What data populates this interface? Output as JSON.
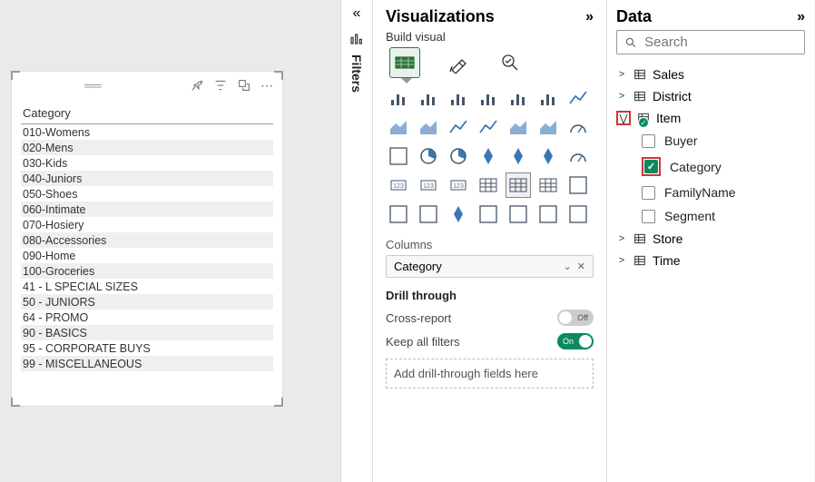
{
  "canvas": {
    "table": {
      "header": "Category",
      "rows": [
        "010-Womens",
        "020-Mens",
        "030-Kids",
        "040-Juniors",
        "050-Shoes",
        "060-Intimate",
        "070-Hosiery",
        "080-Accessories",
        "090-Home",
        "100-Groceries",
        "41 - L SPECIAL SIZES",
        "50 - JUNIORS",
        "64 - PROMO",
        "90 - BASICS",
        "95 - CORPORATE BUYS",
        "99 - MISCELLANEOUS"
      ]
    }
  },
  "filters": {
    "label": "Filters"
  },
  "viz": {
    "title": "Visualizations",
    "subtitle": "Build visual",
    "columns_label": "Columns",
    "columns_field": "Category",
    "drill_label": "Drill through",
    "cross_report_label": "Cross-report",
    "cross_report_state": "Off",
    "keep_filters_label": "Keep all filters",
    "keep_filters_state": "On",
    "drill_drop_label": "Add drill-through fields here",
    "icons": [
      "stacked-bar",
      "stacked-column",
      "clustered-bar",
      "clustered-column",
      "hundred-bar",
      "hundred-column",
      "line",
      "area",
      "stacked-area",
      "line-stacked-col",
      "line-clustered-col",
      "ribbon",
      "waterfall",
      "funnel",
      "scatter",
      "pie",
      "donut",
      "treemap",
      "map",
      "filled-map",
      "gauge",
      "card",
      "multi-card",
      "kpi",
      "slicer",
      "table",
      "matrix",
      "r-visual",
      "py-visual",
      "key-influencers",
      "decomp-tree",
      "qa",
      "narrative",
      "paginated",
      "power-apps"
    ],
    "selected_icon": 25,
    "colors": {
      "accent_blue": "#3a77b7",
      "accent_green": "#2d7a3c"
    }
  },
  "data": {
    "title": "Data",
    "search_placeholder": "Search",
    "tables": [
      {
        "name": "Sales",
        "expanded": false
      },
      {
        "name": "District",
        "expanded": false
      },
      {
        "name": "Item",
        "expanded": true,
        "highlighted": true,
        "has_selection": true,
        "fields": [
          {
            "name": "Buyer",
            "checked": false
          },
          {
            "name": "Category",
            "checked": true,
            "highlighted": true
          },
          {
            "name": "FamilyName",
            "checked": false
          },
          {
            "name": "Segment",
            "checked": false
          }
        ]
      },
      {
        "name": "Store",
        "expanded": false
      },
      {
        "name": "Time",
        "expanded": false
      }
    ]
  }
}
